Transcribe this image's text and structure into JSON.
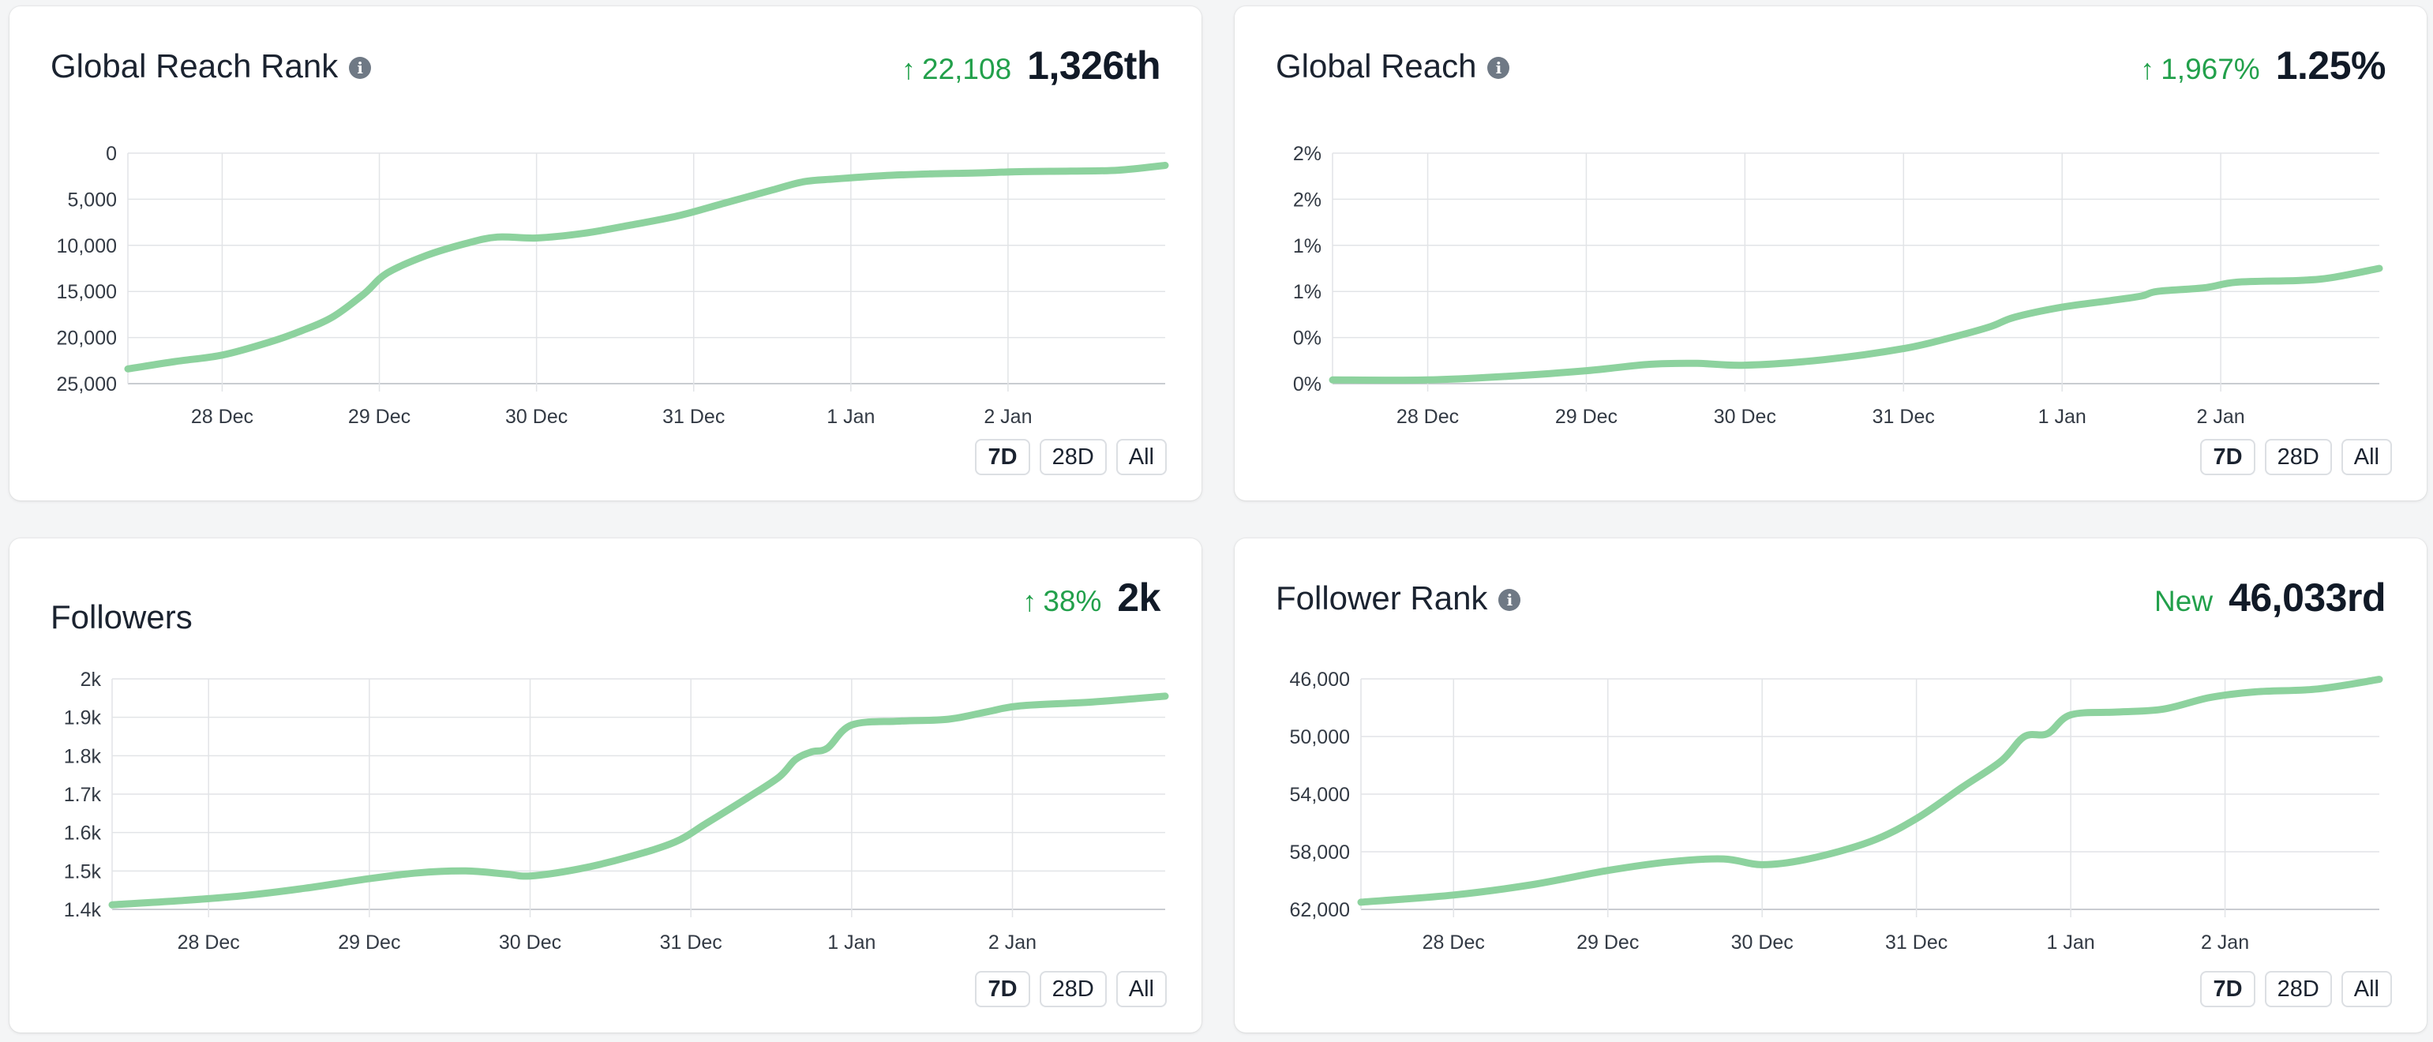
{
  "colors": {
    "line": "#8dd29e",
    "positive": "#22a04b",
    "grid": "#e2e4e7"
  },
  "cards": [
    {
      "title": "Global Reach Rank",
      "has_info": true,
      "arrow": "↑",
      "change": "22,108",
      "value": "1,326th",
      "buttons": [
        "7D",
        "28D",
        "All"
      ],
      "active_button": "7D"
    },
    {
      "title": "Global Reach",
      "has_info": true,
      "arrow": "↑",
      "change": "1,967%",
      "value": "1.25%",
      "buttons": [
        "7D",
        "28D",
        "All"
      ],
      "active_button": "7D"
    },
    {
      "title": "Followers",
      "has_info": false,
      "arrow": "↑",
      "change": "38%",
      "value": "2k",
      "buttons": [
        "7D",
        "28D",
        "All"
      ],
      "active_button": "7D"
    },
    {
      "title": "Follower Rank",
      "has_info": true,
      "arrow": "",
      "change": "New",
      "value": "46,033rd",
      "buttons": [
        "7D",
        "28D",
        "All"
      ],
      "active_button": "7D"
    }
  ],
  "chart_data": [
    {
      "type": "line",
      "title": "Global Reach Rank",
      "y_reversed": true,
      "ylim": [
        0,
        25000
      ],
      "yticks": [
        0,
        5000,
        10000,
        15000,
        20000,
        25000
      ],
      "ytick_labels": [
        "0",
        "5,000",
        "10,000",
        "15,000",
        "20,000",
        "25,000"
      ],
      "xlim": [
        27.4,
        34.0
      ],
      "xticks": [
        28,
        29,
        30,
        31,
        32,
        33
      ],
      "xtick_labels": [
        "28 Dec",
        "29 Dec",
        "30 Dec",
        "31 Dec",
        "1 Jan",
        "2 Jan"
      ],
      "grid": true,
      "series": [
        {
          "points": [
            [
              27.4,
              23400
            ],
            [
              27.7,
              22600
            ],
            [
              28.0,
              21900
            ],
            [
              28.3,
              20500
            ],
            [
              28.5,
              19300
            ],
            [
              28.7,
              17800
            ],
            [
              28.9,
              15300
            ],
            [
              29.05,
              13000
            ],
            [
              29.3,
              11100
            ],
            [
              29.55,
              9800
            ],
            [
              29.75,
              9100
            ],
            [
              30.0,
              9200
            ],
            [
              30.3,
              8700
            ],
            [
              30.6,
              7800
            ],
            [
              30.9,
              6800
            ],
            [
              31.2,
              5400
            ],
            [
              31.5,
              4000
            ],
            [
              31.7,
              3100
            ],
            [
              31.9,
              2800
            ],
            [
              32.2,
              2450
            ],
            [
              32.5,
              2250
            ],
            [
              32.8,
              2150
            ],
            [
              33.1,
              2000
            ],
            [
              33.4,
              1950
            ],
            [
              33.7,
              1850
            ],
            [
              34.0,
              1326
            ]
          ]
        }
      ]
    },
    {
      "type": "line",
      "title": "Global Reach",
      "ylim": [
        0,
        2.5
      ],
      "yticks": [
        0,
        0.5,
        1.0,
        1.5,
        2.0,
        2.5
      ],
      "ytick_labels": [
        "0%",
        "0%",
        "1%",
        "1%",
        "2%",
        "2%"
      ],
      "xlim": [
        27.4,
        34.0
      ],
      "xticks": [
        28,
        29,
        30,
        31,
        32,
        33
      ],
      "xtick_labels": [
        "28 Dec",
        "29 Dec",
        "30 Dec",
        "31 Dec",
        "1 Jan",
        "2 Jan"
      ],
      "grid": true,
      "series": [
        {
          "points": [
            [
              27.4,
              0.04
            ],
            [
              28.0,
              0.04
            ],
            [
              28.5,
              0.08
            ],
            [
              29.0,
              0.14
            ],
            [
              29.4,
              0.21
            ],
            [
              29.7,
              0.22
            ],
            [
              30.0,
              0.2
            ],
            [
              30.5,
              0.26
            ],
            [
              31.0,
              0.38
            ],
            [
              31.3,
              0.5
            ],
            [
              31.55,
              0.62
            ],
            [
              31.7,
              0.72
            ],
            [
              32.0,
              0.83
            ],
            [
              32.3,
              0.9
            ],
            [
              32.5,
              0.95
            ],
            [
              32.6,
              1.0
            ],
            [
              32.9,
              1.04
            ],
            [
              33.1,
              1.1
            ],
            [
              33.5,
              1.12
            ],
            [
              33.7,
              1.15
            ],
            [
              34.0,
              1.25
            ]
          ]
        }
      ]
    },
    {
      "type": "line",
      "title": "Followers",
      "ylim": [
        1400,
        2000
      ],
      "yticks": [
        1400,
        1500,
        1600,
        1700,
        1800,
        1900,
        2000
      ],
      "ytick_labels": [
        "1.4k",
        "1.5k",
        "1.6k",
        "1.7k",
        "1.8k",
        "1.9k",
        "2k"
      ],
      "xlim": [
        27.4,
        33.95
      ],
      "xticks": [
        28,
        29,
        30,
        31,
        32,
        33
      ],
      "xtick_labels": [
        "28 Dec",
        "29 Dec",
        "30 Dec",
        "31 Dec",
        "1 Jan",
        "2 Jan"
      ],
      "grid": true,
      "series": [
        {
          "points": [
            [
              27.4,
              1412
            ],
            [
              27.8,
              1422
            ],
            [
              28.2,
              1435
            ],
            [
              28.6,
              1455
            ],
            [
              29.0,
              1480
            ],
            [
              29.3,
              1495
            ],
            [
              29.6,
              1500
            ],
            [
              29.85,
              1492
            ],
            [
              30.0,
              1487
            ],
            [
              30.3,
              1505
            ],
            [
              30.6,
              1535
            ],
            [
              30.9,
              1575
            ],
            [
              31.1,
              1625
            ],
            [
              31.35,
              1690
            ],
            [
              31.55,
              1745
            ],
            [
              31.65,
              1790
            ],
            [
              31.75,
              1810
            ],
            [
              31.85,
              1820
            ],
            [
              32.0,
              1880
            ],
            [
              32.3,
              1890
            ],
            [
              32.6,
              1895
            ],
            [
              32.85,
              1915
            ],
            [
              33.05,
              1930
            ],
            [
              33.5,
              1940
            ],
            [
              33.95,
              1955
            ]
          ]
        }
      ]
    },
    {
      "type": "line",
      "title": "Follower Rank",
      "y_reversed": true,
      "ylim": [
        46000,
        62000
      ],
      "yticks": [
        46000,
        50000,
        54000,
        58000,
        62000
      ],
      "ytick_labels": [
        "46,000",
        "50,000",
        "54,000",
        "58,000",
        "62,000"
      ],
      "xlim": [
        27.4,
        34.0
      ],
      "xticks": [
        28,
        29,
        30,
        31,
        32,
        33
      ],
      "xtick_labels": [
        "28 Dec",
        "29 Dec",
        "30 Dec",
        "31 Dec",
        "1 Jan",
        "2 Jan"
      ],
      "grid": true,
      "series": [
        {
          "points": [
            [
              27.4,
              61500
            ],
            [
              28.0,
              61000
            ],
            [
              28.5,
              60300
            ],
            [
              29.0,
              59300
            ],
            [
              29.4,
              58700
            ],
            [
              29.75,
              58500
            ],
            [
              30.0,
              58900
            ],
            [
              30.3,
              58500
            ],
            [
              30.7,
              57300
            ],
            [
              31.0,
              55700
            ],
            [
              31.3,
              53500
            ],
            [
              31.55,
              51700
            ],
            [
              31.7,
              50000
            ],
            [
              31.85,
              49800
            ],
            [
              32.0,
              48500
            ],
            [
              32.3,
              48300
            ],
            [
              32.6,
              48100
            ],
            [
              32.9,
              47300
            ],
            [
              33.2,
              46900
            ],
            [
              33.6,
              46700
            ],
            [
              34.0,
              46033
            ]
          ]
        }
      ]
    }
  ]
}
